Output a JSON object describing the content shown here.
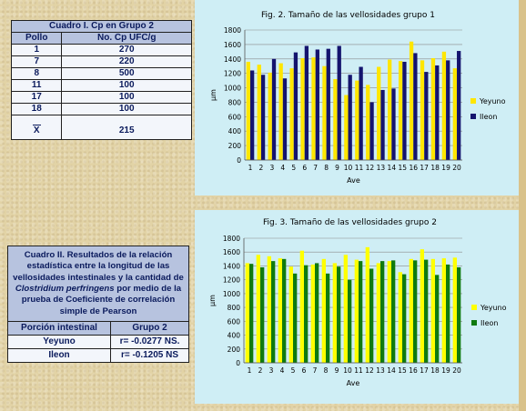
{
  "table1": {
    "title": "Cuadro I. Cp en Grupo 2",
    "col1": "Pollo",
    "col2": "No. Cp UFC/g",
    "rows": [
      [
        "1",
        "270"
      ],
      [
        "7",
        "220"
      ],
      [
        "8",
        "500"
      ],
      [
        "11",
        "100"
      ],
      [
        "17",
        "100"
      ],
      [
        "18",
        "100"
      ]
    ],
    "xbar_symbol": "X",
    "xbar_value": "215"
  },
  "table2": {
    "title_line1": "Cuadro II. Resultados de la relación estadística entre la longitud de las vellosidades intestinales y la cantidad de ",
    "title_italic": "Clostridium perfringens",
    "title_line2": " por medio de la prueba de Coeficiente de correlación simple de Pearson",
    "col1": "Porción intestinal",
    "col2": "Grupo 2",
    "rows": [
      [
        "Yeyuno",
        "r= -0.0277 NS."
      ],
      [
        "Ileon",
        "r= -0.1205 NS"
      ]
    ]
  },
  "chart_data": [
    {
      "type": "bar",
      "title": "Fig. 2.  Tamaño de las vellosidades grupo 1",
      "xlabel": "Ave",
      "ylabel": "µm",
      "ylim": [
        0,
        1800
      ],
      "yticks": [
        0,
        200,
        400,
        600,
        800,
        1000,
        1200,
        1400,
        1600,
        1800
      ],
      "categories": [
        "1",
        "2",
        "3",
        "4",
        "5",
        "6",
        "7",
        "8",
        "9",
        "10",
        "11",
        "12",
        "13",
        "14",
        "15",
        "16",
        "17",
        "18",
        "19",
        "20"
      ],
      "legend": "right",
      "series": [
        {
          "name": "Yeyuno",
          "color": "#ffe600",
          "values": [
            1360,
            1320,
            1210,
            1340,
            1270,
            1410,
            1420,
            1300,
            1120,
            900,
            1100,
            1040,
            1290,
            1390,
            1370,
            1640,
            1380,
            1410,
            1500,
            1270
          ]
        },
        {
          "name": "Ileon",
          "color": "#14146e",
          "values": [
            1240,
            1180,
            1400,
            1130,
            1490,
            1580,
            1530,
            1540,
            1580,
            1180,
            1290,
            800,
            970,
            990,
            1360,
            1480,
            1220,
            1310,
            1380,
            1510
          ]
        }
      ]
    },
    {
      "type": "bar",
      "title": "Fig. 3. Tamaño de las vellosidades grupo 2",
      "xlabel": "Ave",
      "ylabel": "µm",
      "ylim": [
        0,
        1800
      ],
      "yticks": [
        0,
        200,
        400,
        600,
        800,
        1000,
        1200,
        1400,
        1600,
        1800
      ],
      "categories": [
        "1",
        "2",
        "3",
        "4",
        "5",
        "6",
        "7",
        "8",
        "9",
        "10",
        "11",
        "12",
        "13",
        "14",
        "15",
        "16",
        "17",
        "18",
        "19",
        "20"
      ],
      "legend": "right",
      "series": [
        {
          "name": "Yeyuno",
          "color": "#ffff00",
          "values": [
            1440,
            1560,
            1540,
            1510,
            1390,
            1620,
            1420,
            1500,
            1440,
            1560,
            1490,
            1670,
            1440,
            1470,
            1310,
            1500,
            1640,
            1500,
            1510,
            1520
          ]
        },
        {
          "name": "Ileon",
          "color": "#0f7a0f",
          "values": [
            1430,
            1380,
            1470,
            1500,
            1290,
            1410,
            1440,
            1290,
            1390,
            1200,
            1470,
            1360,
            1470,
            1480,
            1280,
            1480,
            1490,
            1270,
            1420,
            1380
          ]
        }
      ]
    }
  ]
}
